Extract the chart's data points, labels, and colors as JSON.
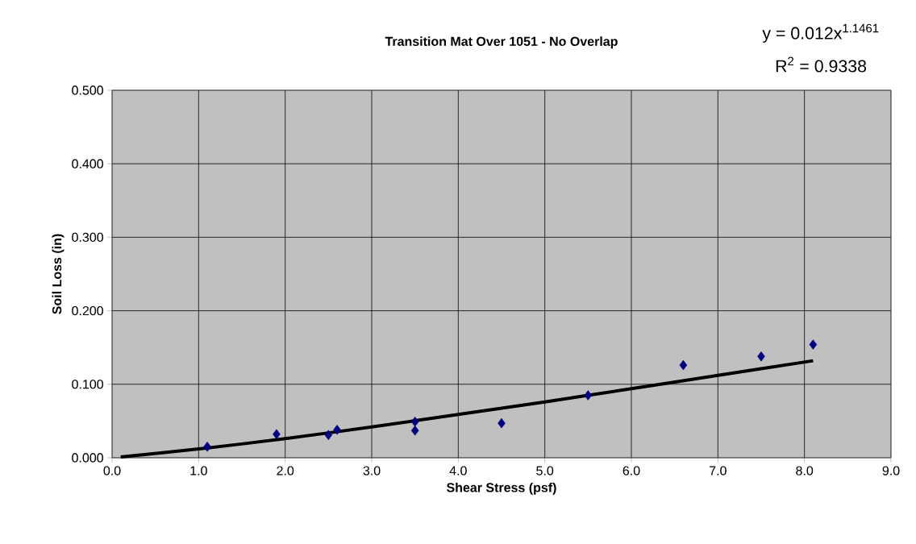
{
  "chart_data": {
    "type": "scatter",
    "title": "Transition Mat Over 1051 - No Overlap",
    "xlabel": "Shear Stress (psf)",
    "ylabel": "Soil Loss (in)",
    "annotations": [
      "y = 0.012x$^{1.1461}$",
      "R$^{2}$ = 0.9338"
    ],
    "series": [
      {
        "color": "#000080",
        "marker": "diamond",
        "x": [
          1.1,
          1.9,
          2.5,
          2.6,
          3.5,
          3.5,
          4.5,
          5.5,
          6.6,
          7.5,
          8.1
        ],
        "values": [
          0.015,
          0.032,
          0.031,
          0.038,
          0.049,
          0.037,
          0.047,
          0.085,
          0.126,
          0.138,
          0.154
        ]
      },
      {
        "type": "line",
        "color": "#000000",
        "marker": "none",
        "line_style": "solid",
        "x": [
          0.1,
          1,
          2,
          3,
          4,
          5,
          6,
          7,
          8.1
        ],
        "values": [
          0.001,
          0.012,
          0.026,
          0.042,
          0.059,
          0.076,
          0.094,
          0.112,
          0.132
        ]
      }
    ],
    "xlim": [
      0,
      9
    ],
    "ylim": [
      0,
      0.5
    ],
    "xticks": [
      {
        "value": 0,
        "label": "0.0"
      },
      {
        "value": 1,
        "label": "1.0"
      },
      {
        "value": 2,
        "label": "2.0"
      },
      {
        "value": 3,
        "label": "3.0"
      },
      {
        "value": 4,
        "label": "4.0"
      },
      {
        "value": 5,
        "label": "5.0"
      },
      {
        "value": 6,
        "label": "6.0"
      },
      {
        "value": 7,
        "label": "7.0"
      },
      {
        "value": 8,
        "label": "8.0"
      },
      {
        "value": 9,
        "label": "9.0"
      }
    ],
    "yticks": [
      {
        "value": 0,
        "label": "0.000"
      },
      {
        "value": 0.1,
        "label": "0.100"
      },
      {
        "value": 0.2,
        "label": "0.200"
      },
      {
        "value": 0.3,
        "label": "0.300"
      },
      {
        "value": 0.4,
        "label": "0.400"
      },
      {
        "value": 0.5,
        "label": "0.500"
      }
    ],
    "grid": true
  }
}
